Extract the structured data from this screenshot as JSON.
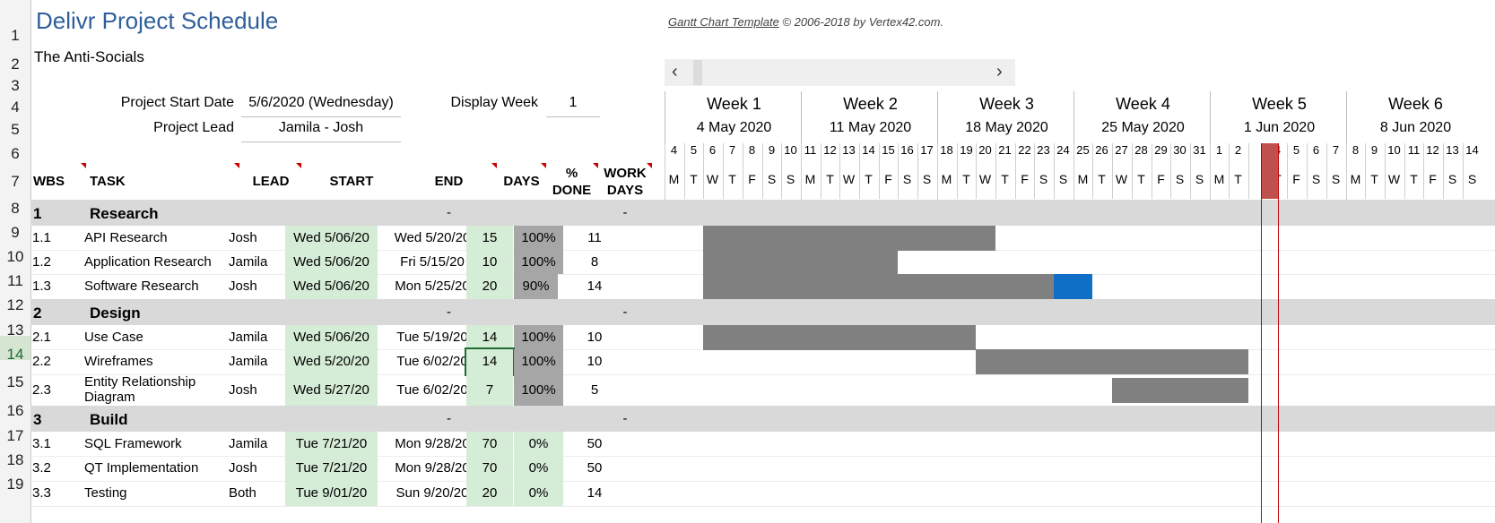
{
  "header": {
    "title": "Delivr Project Schedule",
    "subtitle": "The Anti-Socials",
    "credit_link": "Gantt Chart Template",
    "credit_rest": " © 2006-2018 by Vertex42.com."
  },
  "project": {
    "start_label": "Project Start Date",
    "start_value": "5/6/2020 (Wednesday)",
    "lead_label": "Project Lead",
    "lead_value": "Jamila - Josh",
    "display_week_label": "Display Week",
    "display_week_value": "1"
  },
  "columns": {
    "wbs": "WBS",
    "task": "TASK",
    "lead": "LEAD",
    "start": "START",
    "end": "END",
    "days": "DAYS",
    "done_1": "%",
    "done_2": "DONE",
    "work_1": "WORK",
    "work_2": "DAYS"
  },
  "row_numbers": [
    "1",
    "2",
    "3",
    "4",
    "5",
    "6",
    "7",
    "8",
    "9",
    "10",
    "11",
    "12",
    "13",
    "14",
    "15",
    "16",
    "17",
    "18",
    "19"
  ],
  "weeks": [
    {
      "label": "Week 1",
      "date": "4 May 2020"
    },
    {
      "label": "Week 2",
      "date": "11 May 2020"
    },
    {
      "label": "Week 3",
      "date": "18 May 2020"
    },
    {
      "label": "Week 4",
      "date": "25 May 2020"
    },
    {
      "label": "Week 5",
      "date": "1 Jun 2020"
    },
    {
      "label": "Week 6",
      "date": "8 Jun 2020"
    }
  ],
  "day_numbers": [
    "4",
    "5",
    "6",
    "7",
    "8",
    "9",
    "10",
    "11",
    "12",
    "13",
    "14",
    "15",
    "16",
    "17",
    "18",
    "19",
    "20",
    "21",
    "22",
    "23",
    "24",
    "25",
    "26",
    "27",
    "28",
    "29",
    "30",
    "31",
    "1",
    "2",
    "3",
    "4",
    "5",
    "6",
    "7",
    "8",
    "9",
    "10",
    "11",
    "12",
    "13",
    "14"
  ],
  "day_letters": [
    "M",
    "T",
    "W",
    "T",
    "F",
    "S",
    "S",
    "M",
    "T",
    "W",
    "T",
    "F",
    "S",
    "S",
    "M",
    "T",
    "W",
    "T",
    "F",
    "S",
    "S",
    "M",
    "T",
    "W",
    "T",
    "F",
    "S",
    "S",
    "M",
    "T",
    "W",
    "T",
    "F",
    "S",
    "S",
    "M",
    "T",
    "W",
    "T",
    "F",
    "S",
    "S"
  ],
  "today_day": "3",
  "phases": [
    {
      "wbs": "1",
      "name": "Research",
      "end": "-",
      "work": "-"
    },
    {
      "wbs": "2",
      "name": "Design",
      "end": "-",
      "work": "-"
    },
    {
      "wbs": "3",
      "name": "Build",
      "end": "-",
      "work": "-"
    }
  ],
  "tasks": [
    {
      "wbs": "1.1",
      "task": "API Research",
      "lead": "Josh",
      "start": "Wed 5/06/20",
      "end": "Wed 5/20/20",
      "days": "15",
      "done": "100%",
      "work": "11"
    },
    {
      "wbs": "1.2",
      "task": "Application Research",
      "lead": "Jamila",
      "start": "Wed 5/06/20",
      "end": "Fri 5/15/20",
      "days": "10",
      "done": "100%",
      "work": "8"
    },
    {
      "wbs": "1.3",
      "task": "Software Research",
      "lead": "Josh",
      "start": "Wed 5/06/20",
      "end": "Mon 5/25/20",
      "days": "20",
      "done": "90%",
      "work": "14"
    },
    {
      "wbs": "2.1",
      "task": "Use Case",
      "lead": "Jamila",
      "start": "Wed 5/06/20",
      "end": "Tue 5/19/20",
      "days": "14",
      "done": "100%",
      "work": "10"
    },
    {
      "wbs": "2.2",
      "task": "Wireframes",
      "lead": "Jamila",
      "start": "Wed 5/20/20",
      "end": "Tue 6/02/20",
      "days": "14",
      "done": "100%",
      "work": "10"
    },
    {
      "wbs": "2.3",
      "task": "Entity Relationship Diagram",
      "lead": "Josh",
      "start": "Wed 5/27/20",
      "end": "Tue 6/02/20",
      "days": "7",
      "done": "100%",
      "work": "5"
    },
    {
      "wbs": "3.1",
      "task": "SQL Framework",
      "lead": "Jamila",
      "start": "Tue 7/21/20",
      "end": "Mon 9/28/20",
      "days": "70",
      "done": "0%",
      "work": "50"
    },
    {
      "wbs": "3.2",
      "task": "QT Implementation",
      "lead": "Josh",
      "start": "Tue 7/21/20",
      "end": "Mon 9/28/20",
      "days": "70",
      "done": "0%",
      "work": "50"
    },
    {
      "wbs": "3.3",
      "task": "Testing",
      "lead": "Both",
      "start": "Tue 9/01/20",
      "end": "Sun 9/20/20",
      "days": "20",
      "done": "0%",
      "work": "14"
    }
  ],
  "colors": {
    "title": "#2f5f9a",
    "bar": "#808080",
    "bar_remaining": "#0f6fc6",
    "today_line": "#c00000",
    "start_fill": "#d5ecd6"
  }
}
